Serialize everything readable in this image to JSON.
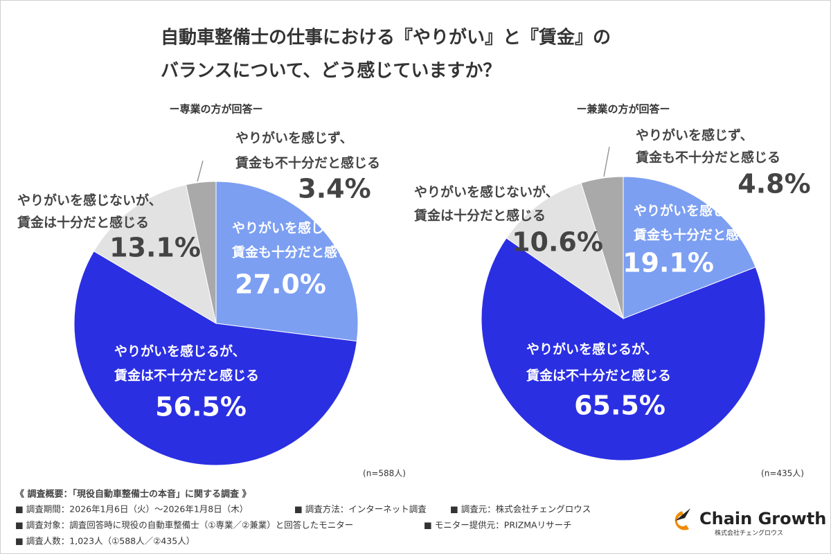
{
  "title": [
    "自動車整備士の仕事における『やりがい』と『賃金』の",
    "バランスについて、どう感じていますか？"
  ],
  "chart_data": [
    {
      "type": "pie",
      "subtitle": "ー専業の方が回答ー",
      "note": "(n=588人)",
      "categories": [
        [
          "やりがいを感じ、",
          "賃金も十分だと感じる"
        ],
        [
          "やりがいを感じるが、",
          "賃金は不十分だと感じる"
        ],
        [
          "やりがいを感じないが、",
          "賃金は十分だと感じる"
        ],
        [
          "やりがいを感じず、",
          "賃金も不十分だと感じる"
        ]
      ],
      "values": [
        27.0,
        56.5,
        13.1,
        3.4
      ],
      "value_labels": [
        "27.0%",
        "56.5%",
        "13.1%",
        "3.4%"
      ],
      "colors": [
        "#7c9ff2",
        "#2b2fe2",
        "#e2e2e2",
        "#a9a9a9"
      ]
    },
    {
      "type": "pie",
      "subtitle": "ー兼業の方が回答ー",
      "note": "(n=435人)",
      "categories": [
        [
          "やりがいを感じ、",
          "賃金も十分だと感じる"
        ],
        [
          "やりがいを感じるが、",
          "賃金は不十分だと感じる"
        ],
        [
          "やりがいを感じないが、",
          "賃金は十分だと感じる"
        ],
        [
          "やりがいを感じず、",
          "賃金も不十分だと感じる"
        ]
      ],
      "values": [
        19.1,
        65.5,
        10.6,
        4.8
      ],
      "value_labels": [
        "19.1%",
        "65.5%",
        "10.6%",
        "4.8%"
      ],
      "colors": [
        "#7c9ff2",
        "#2b2fe2",
        "#e2e2e2",
        "#a9a9a9"
      ]
    }
  ],
  "footer": {
    "heading": "《 調査概要：「現役自動車整備士の本音」に関する調査 》",
    "lines": [
      [
        "■ 調査期間：2026年1月6日（火）〜2026年1月8日（木）",
        "■ 調査方法：インターネット調査",
        "■ 調査元：株式会社チェングロウス"
      ],
      [
        "■ 調査対象：調査回答時に現役の自動車整備士（①専業／②兼業）と回答したモニター",
        "■ モニター提供元：PRIZMAリサーチ"
      ],
      [
        "■ 調査人数：1,023人（①588人／②435人）"
      ]
    ]
  },
  "logo": {
    "name": "Chain Growth",
    "company": "株式会社チェングロウス"
  }
}
